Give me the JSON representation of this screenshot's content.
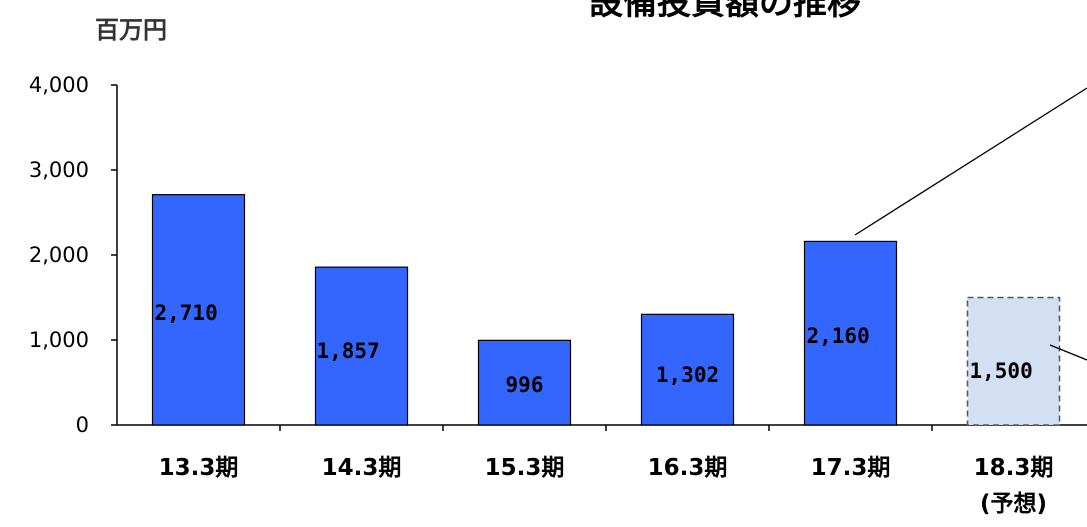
{
  "chart_data": {
    "type": "bar",
    "title": "設備投資額の推移",
    "ylabel": "百万円",
    "xlabel": "",
    "categories": [
      "13.3期",
      "14.3期",
      "15.3期",
      "16.3期",
      "17.3期",
      "18.3期"
    ],
    "category_notes": [
      "",
      "",
      "",
      "",
      "",
      "(予想)"
    ],
    "values": [
      2710,
      1857,
      996,
      1302,
      2160,
      1500
    ],
    "value_labels": [
      "2,710",
      "1,857",
      "996",
      "1,302",
      "2,160",
      "1,500"
    ],
    "forecast": [
      false,
      false,
      false,
      false,
      false,
      true
    ],
    "ylim": [
      0,
      4000
    ],
    "yticks": [
      0,
      1000,
      2000,
      3000,
      4000
    ],
    "ytick_labels": [
      "0",
      "1,000",
      "2,000",
      "3,000",
      "4,000"
    ],
    "grid": false,
    "legend": "none",
    "colors": {
      "bar": "#3366ff",
      "forecast_bar": "#d3e0f4",
      "bar_stroke": "#000000",
      "forecast_stroke": "#555555"
    }
  }
}
